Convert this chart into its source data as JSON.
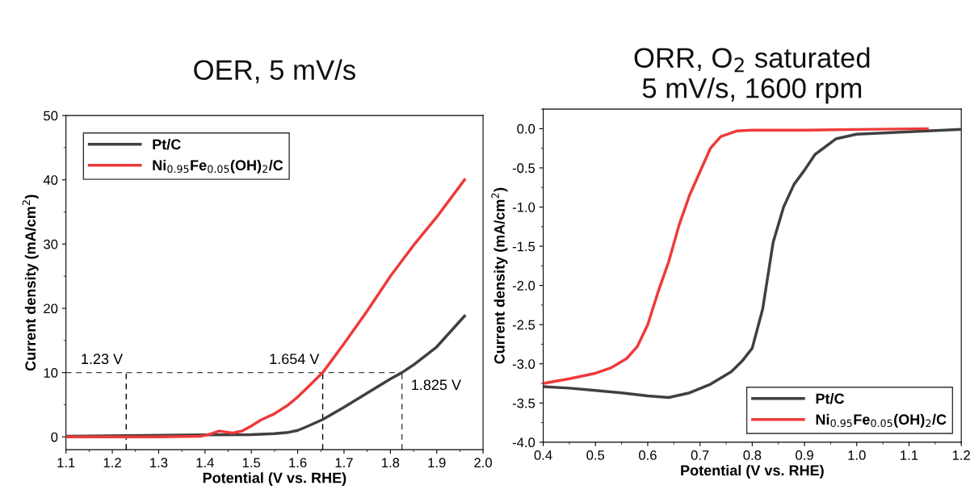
{
  "chart_data": [
    {
      "type": "line",
      "title": "OER, 5 mV/s",
      "xlabel": "Potential (V vs. RHE)",
      "ylabel": "Current density (mA/cm$^{2}$)",
      "xlim": [
        1.1,
        2.0
      ],
      "xticks": [
        {
          "value": 1.1,
          "label": "1.1"
        },
        {
          "value": 1.2,
          "label": "1.2"
        },
        {
          "value": 1.3,
          "label": "1.3"
        },
        {
          "value": 1.4,
          "label": "1.4"
        },
        {
          "value": 1.5,
          "label": "1.5"
        },
        {
          "value": 1.6,
          "label": "1.6"
        },
        {
          "value": 1.7,
          "label": "1.7"
        },
        {
          "value": 1.8,
          "label": "1.8"
        },
        {
          "value": 1.9,
          "label": "1.9"
        },
        {
          "value": 2.0,
          "label": "2.0"
        }
      ],
      "ylim": [
        -2,
        50
      ],
      "yticks": [
        0,
        10,
        20,
        30,
        40,
        50
      ],
      "legend": "top left",
      "grid": false,
      "marker": "none",
      "line_style": "solid",
      "series": [
        {
          "name": "Pt/C",
          "color": "#404040",
          "x": [
            1.1,
            1.4,
            1.5,
            1.55,
            1.58,
            1.6,
            1.62,
            1.654,
            1.7,
            1.75,
            1.8,
            1.825,
            1.85,
            1.9,
            1.96
          ],
          "values": [
            0.1,
            0.3,
            0.35,
            0.5,
            0.7,
            1.0,
            1.6,
            2.7,
            4.6,
            6.8,
            9.0,
            10,
            11.2,
            14.0,
            18.8
          ]
        },
        {
          "name": "Ni$_{0.95}$Fe$_{0.05}$(OH)$_{2}$/C",
          "color": "#ee3a3a",
          "x": [
            1.1,
            1.3,
            1.39,
            1.41,
            1.43,
            1.44,
            1.46,
            1.48,
            1.5,
            1.52,
            1.55,
            1.58,
            1.6,
            1.62,
            1.654,
            1.7,
            1.75,
            1.8,
            1.85,
            1.9,
            1.96
          ],
          "values": [
            0,
            0,
            0.1,
            0.4,
            0.9,
            0.8,
            0.6,
            0.9,
            1.7,
            2.6,
            3.6,
            5.0,
            6.2,
            7.6,
            10,
            14.5,
            19.6,
            25.0,
            29.8,
            34.2,
            40
          ]
        }
      ],
      "ref_lines": [
        {
          "axis": "y",
          "value": 10,
          "line_style": "dashed",
          "color": "#404040"
        },
        {
          "axis": "x",
          "value": 1.23,
          "line_style": "dashed",
          "color": "#000000"
        },
        {
          "axis": "x",
          "value": 1.654,
          "line_style": "dashed",
          "color": "#000000"
        },
        {
          "axis": "x",
          "value": 1.825,
          "line_style": "dashed",
          "color": "#404040"
        }
      ],
      "annotations": [
        {
          "text": "1.23 V",
          "x": 1.23,
          "y": 10
        },
        {
          "text": "1.654 V",
          "x": 1.654,
          "y": 10
        },
        {
          "text": "1.825 V",
          "x": 1.825,
          "y": 10
        }
      ]
    },
    {
      "type": "line",
      "title": "ORR, O$_{2}$ saturated\n5 mV/s, 1600 rpm",
      "xlabel": "Potential (V vs. RHE)",
      "ylabel": "Current density (mA/cm$^{2}$)",
      "xlim": [
        0.4,
        1.2
      ],
      "xticks": [
        0.4,
        0.5,
        0.6,
        0.7,
        0.8,
        0.9,
        {
          "value": 1.0,
          "label": "1.0"
        },
        1.1,
        1.2
      ],
      "ylim": [
        -4.0,
        0.25
      ],
      "yticks": [
        {
          "value": -4.0,
          "label": "-4.0"
        },
        {
          "value": -3.5,
          "label": "-3.5"
        },
        {
          "value": -3.0,
          "label": "-3.0"
        },
        {
          "value": -2.5,
          "label": "-2.5"
        },
        {
          "value": -2.0,
          "label": "-2.0"
        },
        {
          "value": -1.5,
          "label": "-1.5"
        },
        {
          "value": -1.0,
          "label": "-1.0"
        },
        {
          "value": -0.5,
          "label": "-0.5"
        },
        {
          "value": 0.0,
          "label": "0.0"
        }
      ],
      "legend": "bottom right",
      "grid": false,
      "marker": "none",
      "line_style": "solid",
      "series": [
        {
          "name": "Pt/C",
          "color": "#404040",
          "x": [
            0.4,
            0.45,
            0.5,
            0.55,
            0.6,
            0.64,
            0.68,
            0.72,
            0.76,
            0.78,
            0.8,
            0.82,
            0.84,
            0.86,
            0.88,
            0.9,
            0.92,
            0.96,
            1.0,
            1.1,
            1.2
          ],
          "values": [
            -3.29,
            -3.31,
            -3.34,
            -3.37,
            -3.41,
            -3.43,
            -3.37,
            -3.26,
            -3.1,
            -2.97,
            -2.8,
            -2.3,
            -1.45,
            -1.0,
            -0.71,
            -0.53,
            -0.33,
            -0.13,
            -0.07,
            -0.04,
            -0.01
          ]
        },
        {
          "name": "Ni$_{0.95}$Fe$_{0.05}$(OH)$_{2}$/C",
          "color": "#ee3a3a",
          "x": [
            0.4,
            0.45,
            0.5,
            0.53,
            0.56,
            0.58,
            0.6,
            0.62,
            0.64,
            0.66,
            0.68,
            0.7,
            0.72,
            0.74,
            0.77,
            0.8,
            0.9,
            1.0,
            1.135
          ],
          "values": [
            -3.25,
            -3.19,
            -3.12,
            -3.05,
            -2.93,
            -2.78,
            -2.5,
            -2.08,
            -1.7,
            -1.23,
            -0.85,
            -0.55,
            -0.25,
            -0.1,
            -0.03,
            -0.02,
            -0.02,
            -0.01,
            0.0
          ]
        }
      ]
    }
  ]
}
